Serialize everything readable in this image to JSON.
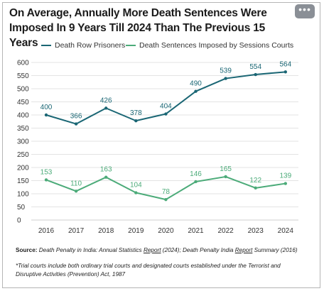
{
  "title": "On Average, Annually More Death Sentences Were Imposed In 9 Years Till 2024 Than The Previous 15 Years",
  "more_button": "•••",
  "source": {
    "label": "Source:",
    "part1": "Death Penalty in India: Annual Statistics",
    "link1": "Report",
    "part2": "(2024); Death Penalty India",
    "link2": "Report",
    "part3": "Summary (2016)"
  },
  "note": "*Trial courts include both ordinary trial courts and designated courts established under the Terrorist and Disruptive Activities (Prevention) Act, 1987",
  "colors": {
    "death_row": "#1a6674",
    "sessions": "#4cab79",
    "grid": "#e3e3e3"
  },
  "chart_data": {
    "type": "line",
    "title": "On Average, Annually More Death Sentences Were Imposed In 9 Years Till 2024 Than The Previous 15 Years",
    "x": [
      "2016",
      "2017",
      "2018",
      "2019",
      "2020",
      "2021",
      "2022",
      "2023",
      "2024"
    ],
    "ylim": [
      0,
      600
    ],
    "yticks": [
      0,
      50,
      100,
      150,
      200,
      250,
      300,
      350,
      400,
      450,
      500,
      550,
      600
    ],
    "grid": true,
    "legend_position": "top",
    "series": [
      {
        "name": "Death Row Prisoners",
        "values": [
          400,
          366,
          426,
          378,
          404,
          490,
          539,
          554,
          564
        ],
        "color": "#1a6674"
      },
      {
        "name": "Death Sentences Imposed by Sessions Courts",
        "values": [
          153,
          110,
          163,
          104,
          78,
          146,
          165,
          122,
          139
        ],
        "color": "#4cab79"
      }
    ]
  }
}
